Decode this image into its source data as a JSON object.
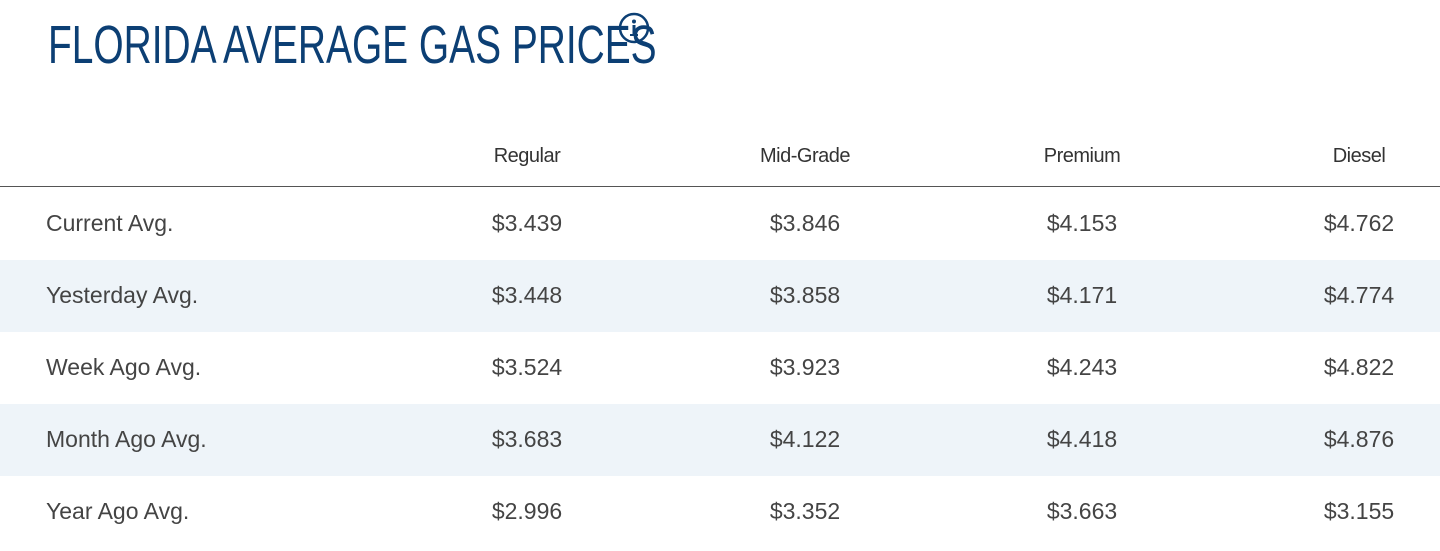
{
  "header": {
    "title": "FLORIDA AVERAGE GAS PRICES"
  },
  "table": {
    "columns": [
      "Regular",
      "Mid-Grade",
      "Premium",
      "Diesel"
    ],
    "rows": [
      [
        "Current Avg.",
        "$3.439",
        "$3.846",
        "$4.153",
        "$4.762"
      ],
      [
        "Yesterday Avg.",
        "$3.448",
        "$3.858",
        "$4.171",
        "$4.774"
      ],
      [
        "Week Ago Avg.",
        "$3.524",
        "$3.923",
        "$4.243",
        "$4.822"
      ],
      [
        "Month Ago Avg.",
        "$3.683",
        "$4.122",
        "$4.418",
        "$4.876"
      ],
      [
        "Year Ago Avg.",
        "$2.996",
        "$3.352",
        "$3.663",
        "$3.155"
      ]
    ]
  }
}
